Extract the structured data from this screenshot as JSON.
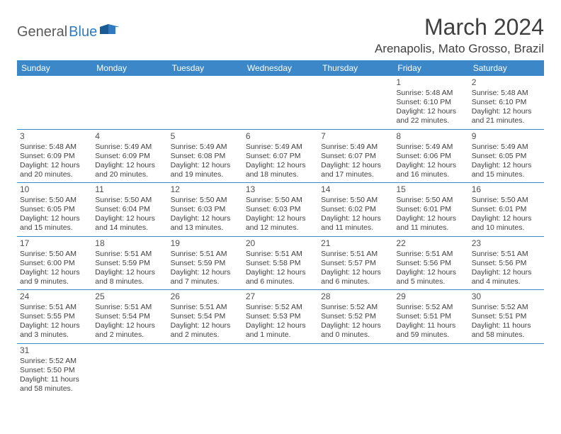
{
  "logo": {
    "text1": "General",
    "text2": "Blue"
  },
  "title": "March 2024",
  "location": "Arenapolis, Mato Grosso, Brazil",
  "colors": {
    "header_bg": "#3b87c8",
    "header_text": "#ffffff",
    "body_text": "#404040",
    "logo_gray": "#5a5a5a",
    "logo_blue": "#2f7ac0",
    "cell_border": "#3b87c8",
    "background": "#ffffff"
  },
  "weekdays": [
    "Sunday",
    "Monday",
    "Tuesday",
    "Wednesday",
    "Thursday",
    "Friday",
    "Saturday"
  ],
  "weeks": [
    [
      null,
      null,
      null,
      null,
      null,
      {
        "n": "1",
        "sr": "5:48 AM",
        "ss": "6:10 PM",
        "dl1": "12 hours",
        "dl2": "and 22 minutes."
      },
      {
        "n": "2",
        "sr": "5:48 AM",
        "ss": "6:10 PM",
        "dl1": "12 hours",
        "dl2": "and 21 minutes."
      }
    ],
    [
      {
        "n": "3",
        "sr": "5:48 AM",
        "ss": "6:09 PM",
        "dl1": "12 hours",
        "dl2": "and 20 minutes."
      },
      {
        "n": "4",
        "sr": "5:49 AM",
        "ss": "6:09 PM",
        "dl1": "12 hours",
        "dl2": "and 20 minutes."
      },
      {
        "n": "5",
        "sr": "5:49 AM",
        "ss": "6:08 PM",
        "dl1": "12 hours",
        "dl2": "and 19 minutes."
      },
      {
        "n": "6",
        "sr": "5:49 AM",
        "ss": "6:07 PM",
        "dl1": "12 hours",
        "dl2": "and 18 minutes."
      },
      {
        "n": "7",
        "sr": "5:49 AM",
        "ss": "6:07 PM",
        "dl1": "12 hours",
        "dl2": "and 17 minutes."
      },
      {
        "n": "8",
        "sr": "5:49 AM",
        "ss": "6:06 PM",
        "dl1": "12 hours",
        "dl2": "and 16 minutes."
      },
      {
        "n": "9",
        "sr": "5:49 AM",
        "ss": "6:05 PM",
        "dl1": "12 hours",
        "dl2": "and 15 minutes."
      }
    ],
    [
      {
        "n": "10",
        "sr": "5:50 AM",
        "ss": "6:05 PM",
        "dl1": "12 hours",
        "dl2": "and 15 minutes."
      },
      {
        "n": "11",
        "sr": "5:50 AM",
        "ss": "6:04 PM",
        "dl1": "12 hours",
        "dl2": "and 14 minutes."
      },
      {
        "n": "12",
        "sr": "5:50 AM",
        "ss": "6:03 PM",
        "dl1": "12 hours",
        "dl2": "and 13 minutes."
      },
      {
        "n": "13",
        "sr": "5:50 AM",
        "ss": "6:03 PM",
        "dl1": "12 hours",
        "dl2": "and 12 minutes."
      },
      {
        "n": "14",
        "sr": "5:50 AM",
        "ss": "6:02 PM",
        "dl1": "12 hours",
        "dl2": "and 11 minutes."
      },
      {
        "n": "15",
        "sr": "5:50 AM",
        "ss": "6:01 PM",
        "dl1": "12 hours",
        "dl2": "and 11 minutes."
      },
      {
        "n": "16",
        "sr": "5:50 AM",
        "ss": "6:01 PM",
        "dl1": "12 hours",
        "dl2": "and 10 minutes."
      }
    ],
    [
      {
        "n": "17",
        "sr": "5:50 AM",
        "ss": "6:00 PM",
        "dl1": "12 hours",
        "dl2": "and 9 minutes."
      },
      {
        "n": "18",
        "sr": "5:51 AM",
        "ss": "5:59 PM",
        "dl1": "12 hours",
        "dl2": "and 8 minutes."
      },
      {
        "n": "19",
        "sr": "5:51 AM",
        "ss": "5:59 PM",
        "dl1": "12 hours",
        "dl2": "and 7 minutes."
      },
      {
        "n": "20",
        "sr": "5:51 AM",
        "ss": "5:58 PM",
        "dl1": "12 hours",
        "dl2": "and 6 minutes."
      },
      {
        "n": "21",
        "sr": "5:51 AM",
        "ss": "5:57 PM",
        "dl1": "12 hours",
        "dl2": "and 6 minutes."
      },
      {
        "n": "22",
        "sr": "5:51 AM",
        "ss": "5:56 PM",
        "dl1": "12 hours",
        "dl2": "and 5 minutes."
      },
      {
        "n": "23",
        "sr": "5:51 AM",
        "ss": "5:56 PM",
        "dl1": "12 hours",
        "dl2": "and 4 minutes."
      }
    ],
    [
      {
        "n": "24",
        "sr": "5:51 AM",
        "ss": "5:55 PM",
        "dl1": "12 hours",
        "dl2": "and 3 minutes."
      },
      {
        "n": "25",
        "sr": "5:51 AM",
        "ss": "5:54 PM",
        "dl1": "12 hours",
        "dl2": "and 2 minutes."
      },
      {
        "n": "26",
        "sr": "5:51 AM",
        "ss": "5:54 PM",
        "dl1": "12 hours",
        "dl2": "and 2 minutes."
      },
      {
        "n": "27",
        "sr": "5:52 AM",
        "ss": "5:53 PM",
        "dl1": "12 hours",
        "dl2": "and 1 minute."
      },
      {
        "n": "28",
        "sr": "5:52 AM",
        "ss": "5:52 PM",
        "dl1": "12 hours",
        "dl2": "and 0 minutes."
      },
      {
        "n": "29",
        "sr": "5:52 AM",
        "ss": "5:51 PM",
        "dl1": "11 hours",
        "dl2": "and 59 minutes."
      },
      {
        "n": "30",
        "sr": "5:52 AM",
        "ss": "5:51 PM",
        "dl1": "11 hours",
        "dl2": "and 58 minutes."
      }
    ],
    [
      {
        "n": "31",
        "sr": "5:52 AM",
        "ss": "5:50 PM",
        "dl1": "11 hours",
        "dl2": "and 58 minutes."
      },
      null,
      null,
      null,
      null,
      null,
      null
    ]
  ],
  "labels": {
    "sunrise": "Sunrise:",
    "sunset": "Sunset:",
    "daylight": "Daylight:"
  }
}
